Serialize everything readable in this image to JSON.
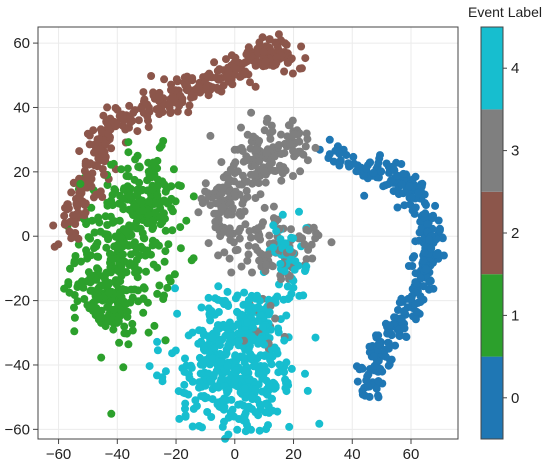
{
  "chart_data": {
    "type": "scatter",
    "title": "",
    "xlabel": "",
    "ylabel": "",
    "xlim": [
      -67,
      76
    ],
    "ylim": [
      -63,
      65
    ],
    "x_ticks": [
      -60,
      -40,
      -20,
      0,
      20,
      40,
      60
    ],
    "y_ticks": [
      -60,
      -40,
      -20,
      0,
      20,
      40,
      60
    ],
    "grid": true,
    "legend": "colorbar-right",
    "colorbar": {
      "title": "Event Label",
      "levels": [
        0,
        1,
        2,
        3,
        4
      ],
      "tick_labels": [
        "0",
        "1",
        "2",
        "3",
        "4"
      ],
      "colors": [
        "#1f77b4",
        "#2ca02c",
        "#8c564b",
        "#7f7f7f",
        "#17becf"
      ]
    },
    "clusters": [
      {
        "label": 0,
        "color": "#1f77b4",
        "count": 340,
        "path": [
          [
            33,
            26
          ],
          [
            42,
            22
          ],
          [
            52,
            20
          ],
          [
            60,
            15
          ],
          [
            65,
            8
          ],
          [
            67,
            0
          ],
          [
            66,
            -8
          ],
          [
            63,
            -16
          ],
          [
            58,
            -24
          ],
          [
            52,
            -32
          ],
          [
            48,
            -40
          ],
          [
            45,
            -48
          ]
        ],
        "spread": 2.2
      },
      {
        "label": 1,
        "color": "#2ca02c",
        "count": 460,
        "blobs": [
          {
            "cx": -38,
            "cy": -5,
            "sx": 8,
            "sy": 13,
            "n": 260
          },
          {
            "cx": -30,
            "cy": 10,
            "sx": 6,
            "sy": 8,
            "n": 110
          },
          {
            "cx": -44,
            "cy": -20,
            "sx": 5,
            "sy": 5,
            "n": 90
          }
        ]
      },
      {
        "label": 2,
        "color": "#8c564b",
        "count": 390,
        "path": [
          [
            -58,
            0
          ],
          [
            -53,
            10
          ],
          [
            -48,
            21
          ],
          [
            -45,
            30
          ],
          [
            -38,
            37
          ],
          [
            -28,
            41
          ],
          [
            -18,
            45
          ],
          [
            -10,
            47
          ],
          [
            -2,
            51
          ],
          [
            6,
            55
          ],
          [
            13,
            56
          ],
          [
            20,
            55
          ]
        ],
        "spread": 2.6
      },
      {
        "label": 3,
        "color": "#7f7f7f",
        "count": 330,
        "blobs": [
          {
            "cx": -3,
            "cy": 10,
            "sx": 4,
            "sy": 6,
            "n": 90
          },
          {
            "cx": 9,
            "cy": 24,
            "sx": 6,
            "sy": 5,
            "n": 100
          },
          {
            "cx": 20,
            "cy": 30,
            "sx": 3,
            "sy": 3,
            "n": 30
          },
          {
            "cx": 14,
            "cy": -4,
            "sx": 8,
            "sy": 5,
            "n": 90
          },
          {
            "cx": 10,
            "cy": -28,
            "sx": 4,
            "sy": 4,
            "n": 20
          }
        ]
      },
      {
        "label": 4,
        "color": "#17becf",
        "count": 520,
        "blobs": [
          {
            "cx": 0,
            "cy": -42,
            "sx": 10,
            "sy": 9,
            "n": 380
          },
          {
            "cx": 5,
            "cy": -25,
            "sx": 6,
            "sy": 5,
            "n": 90
          },
          {
            "cx": 18,
            "cy": -6,
            "sx": 4,
            "sy": 8,
            "n": 50
          }
        ]
      }
    ]
  }
}
